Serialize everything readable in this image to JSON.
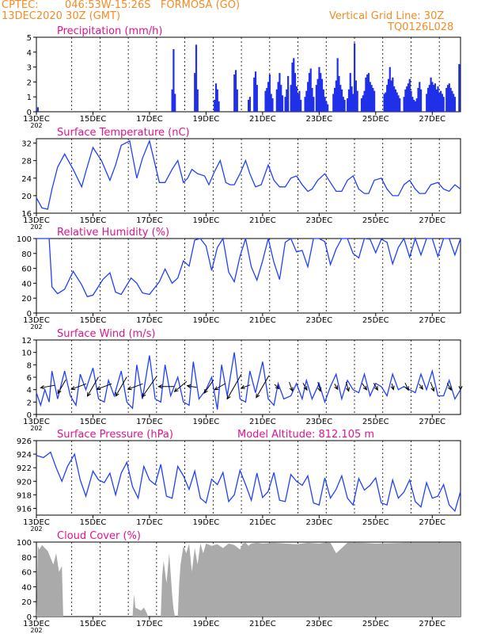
{
  "header": {
    "source": "CPTEC:",
    "location": "046:53W-15:26S   FORMOSA (GO)",
    "run": "13DEC2020 30Z (GMT)",
    "grid_note": "Vertical Grid Line: 30Z",
    "model": "TQ0126L028"
  },
  "altitude_label": "Model Altitude: 812.105 m",
  "colors": {
    "header": "#f28c28",
    "title": "#e0148c",
    "line": "#2040ff",
    "bar": "#2030e8",
    "cloud": "#aaaaaa",
    "arrow": "#000000"
  },
  "x_axis": {
    "tick_labels": [
      "13DEC",
      "15DEC",
      "17DEC",
      "19DEC",
      "21DEC",
      "23DEC",
      "25DEC",
      "27DEC"
    ],
    "year_fragment": "202",
    "range_days": [
      0,
      15
    ]
  },
  "chart_data": [
    {
      "type": "bar",
      "title": "Precipitation (mm/h)",
      "ylim": [
        0,
        5
      ],
      "yticks": [
        0,
        1,
        2,
        3,
        4,
        5
      ],
      "note": "x values in days after 13DEC 00Z",
      "x": [
        0.05,
        4.8,
        4.85,
        4.9,
        5.6,
        5.65,
        5.7,
        6.3,
        6.35,
        6.4,
        6.45,
        7.0,
        7.05,
        7.1,
        7.5,
        7.55,
        7.7,
        7.75,
        7.8,
        8.1,
        8.15,
        8.2,
        8.25,
        8.3,
        8.35,
        8.5,
        8.55,
        8.6,
        8.65,
        8.7,
        8.8,
        8.85,
        8.9,
        9.0,
        9.05,
        9.1,
        9.15,
        9.2,
        9.25,
        9.3,
        9.35,
        9.5,
        9.55,
        9.6,
        9.65,
        9.7,
        9.75,
        9.8,
        9.9,
        9.95,
        10.0,
        10.05,
        10.1,
        10.15,
        10.2,
        10.25,
        10.3,
        10.5,
        10.55,
        10.6,
        10.65,
        10.7,
        10.75,
        10.8,
        10.85,
        10.9,
        11.0,
        11.05,
        11.1,
        11.15,
        11.2,
        11.25,
        11.3,
        11.35,
        11.5,
        11.55,
        11.6,
        11.65,
        11.7,
        11.75,
        11.8,
        11.85,
        11.9,
        11.95,
        12.3,
        12.35,
        12.4,
        12.45,
        12.5,
        12.55,
        12.6,
        12.65,
        12.7,
        12.75,
        12.8,
        12.85,
        13.0,
        13.05,
        13.1,
        13.15,
        13.2,
        13.25,
        13.3,
        13.35,
        13.4,
        13.45,
        13.5,
        13.55,
        13.6,
        13.8,
        13.85,
        13.9,
        13.95,
        14.0,
        14.05,
        14.1,
        14.15,
        14.2,
        14.25,
        14.3,
        14.35,
        14.4,
        14.5,
        14.55,
        14.6,
        14.65,
        14.7,
        14.75,
        14.8,
        14.95
      ],
      "values": [
        0.3,
        1.5,
        4.2,
        1.2,
        2.6,
        4.5,
        1.5,
        0.8,
        1.9,
        1.5,
        0.7,
        2.5,
        2.8,
        1.5,
        0.8,
        1.0,
        2.3,
        2.7,
        1.8,
        1.4,
        1.6,
        2.0,
        2.5,
        1.2,
        0.9,
        1.5,
        2.0,
        2.6,
        1.8,
        1.1,
        1.0,
        1.5,
        2.4,
        1.8,
        3.3,
        3.6,
        2.6,
        1.7,
        1.2,
        1.4,
        0.8,
        1.0,
        1.4,
        2.0,
        2.6,
        2.9,
        1.6,
        1.0,
        1.8,
        2.2,
        3.0,
        2.6,
        2.2,
        1.5,
        1.0,
        0.7,
        0.5,
        1.2,
        1.6,
        2.1,
        3.6,
        2.4,
        1.8,
        1.5,
        1.0,
        0.8,
        0.9,
        1.5,
        2.6,
        1.7,
        1.2,
        4.6,
        2.1,
        1.4,
        0.9,
        1.1,
        1.4,
        2.3,
        2.5,
        2.6,
        2.0,
        1.8,
        1.6,
        1.4,
        1.2,
        1.3,
        1.8,
        2.2,
        3.0,
        2.1,
        2.3,
        1.7,
        1.5,
        1.3,
        1.1,
        0.9,
        1.0,
        1.5,
        1.7,
        1.9,
        2.2,
        1.4,
        1.0,
        0.8,
        0.7,
        0.9,
        1.6,
        2.0,
        1.5,
        1.2,
        1.6,
        1.8,
        2.3,
        2.0,
        1.8,
        1.9,
        1.5,
        1.7,
        1.3,
        1.4,
        1.2,
        1.0,
        1.6,
        1.8,
        1.9,
        1.6,
        1.4,
        1.2,
        1.0,
        3.2
      ]
    },
    {
      "type": "line",
      "title": "Surface Temperature (nC)",
      "ylim": [
        16,
        33
      ],
      "yticks": [
        16,
        20,
        24,
        28,
        32
      ],
      "x": [
        0,
        0.2,
        0.4,
        0.55,
        0.75,
        1.0,
        1.3,
        1.6,
        1.75,
        2.0,
        2.3,
        2.6,
        2.8,
        3.0,
        3.3,
        3.55,
        3.75,
        4.0,
        4.35,
        4.55,
        4.8,
        5.0,
        5.2,
        5.35,
        5.5,
        5.7,
        5.95,
        6.1,
        6.3,
        6.5,
        6.7,
        6.85,
        7.0,
        7.2,
        7.4,
        7.55,
        7.75,
        7.95,
        8.2,
        8.4,
        8.6,
        8.8,
        9.0,
        9.2,
        9.4,
        9.6,
        9.75,
        9.95,
        10.2,
        10.4,
        10.6,
        10.8,
        11.0,
        11.2,
        11.4,
        11.6,
        11.75,
        11.95,
        12.2,
        12.4,
        12.6,
        12.8,
        13.0,
        13.2,
        13.4,
        13.55,
        13.75,
        13.95,
        14.2,
        14.4,
        14.6,
        14.8,
        15.0
      ],
      "values": [
        19.5,
        17.2,
        16.9,
        21.5,
        26.5,
        29.5,
        26.0,
        22.0,
        25.5,
        31.0,
        28.0,
        23.5,
        27.0,
        31.5,
        32.5,
        24.0,
        28.5,
        32.5,
        23.0,
        23.0,
        26.0,
        28.0,
        23.0,
        24.0,
        26.0,
        25.0,
        24.5,
        22.5,
        25.5,
        28.0,
        23.0,
        22.5,
        22.5,
        25.0,
        28.0,
        25.0,
        22.0,
        22.5,
        27.0,
        23.5,
        22.0,
        22.0,
        24.0,
        24.5,
        22.5,
        21.0,
        21.5,
        23.5,
        25.0,
        23.0,
        21.0,
        21.0,
        23.5,
        24.5,
        21.5,
        20.5,
        20.5,
        23.5,
        24.0,
        21.5,
        20.0,
        20.0,
        22.5,
        23.5,
        21.5,
        20.5,
        20.5,
        22.5,
        23.0,
        21.5,
        21.0,
        22.5,
        21.5
      ]
    },
    {
      "type": "line",
      "title": "Relative Humidity (%)",
      "ylim": [
        0,
        100
      ],
      "yticks": [
        0,
        20,
        40,
        60,
        80,
        100
      ],
      "x": [
        0,
        0.25,
        0.45,
        0.55,
        0.75,
        1.0,
        1.3,
        1.6,
        1.8,
        2.0,
        2.35,
        2.6,
        2.8,
        3.0,
        3.35,
        3.55,
        3.75,
        4.0,
        4.35,
        4.55,
        4.8,
        5.0,
        5.2,
        5.4,
        5.6,
        5.8,
        6.0,
        6.2,
        6.4,
        6.6,
        6.8,
        7.0,
        7.2,
        7.4,
        7.6,
        7.8,
        8.0,
        8.2,
        8.4,
        8.6,
        8.8,
        9.0,
        9.2,
        9.4,
        9.6,
        9.8,
        10.0,
        10.2,
        10.4,
        10.6,
        10.8,
        11.0,
        11.2,
        11.4,
        11.6,
        11.8,
        12.0,
        12.2,
        12.4,
        12.6,
        12.8,
        13.0,
        13.2,
        13.4,
        13.6,
        13.8,
        14.0,
        14.2,
        14.4,
        14.6,
        14.8,
        15.0
      ],
      "values": [
        100,
        100,
        100,
        35,
        26,
        32,
        56,
        38,
        22,
        24,
        45,
        54,
        28,
        25,
        47,
        40,
        27,
        25,
        42,
        59,
        40,
        47,
        70,
        63,
        98,
        100,
        90,
        57,
        88,
        100,
        55,
        42,
        76,
        100,
        62,
        44,
        70,
        100,
        68,
        45,
        95,
        100,
        82,
        84,
        62,
        100,
        100,
        96,
        65,
        86,
        100,
        100,
        80,
        74,
        100,
        99,
        81,
        99,
        95,
        66,
        88,
        100,
        75,
        100,
        78,
        100,
        100,
        76,
        100,
        100,
        78,
        100
      ]
    },
    {
      "type": "line",
      "title": "Surface Wind (m/s)",
      "ylim": [
        0,
        12
      ],
      "yticks": [
        0,
        2,
        4,
        6,
        8,
        10,
        12
      ],
      "x": [
        0,
        0.15,
        0.3,
        0.45,
        0.55,
        0.75,
        1.0,
        1.2,
        1.4,
        1.55,
        1.75,
        2.0,
        2.2,
        2.4,
        2.55,
        2.75,
        3.0,
        3.2,
        3.4,
        3.55,
        3.75,
        4.0,
        4.2,
        4.4,
        4.55,
        4.75,
        5.0,
        5.2,
        5.4,
        5.55,
        5.75,
        6.0,
        6.2,
        6.4,
        6.55,
        6.75,
        7.0,
        7.2,
        7.4,
        7.55,
        7.75,
        8.0,
        8.2,
        8.4,
        8.55,
        8.75,
        9.0,
        9.2,
        9.4,
        9.55,
        9.75,
        10.0,
        10.2,
        10.4,
        10.6,
        10.8,
        11.0,
        11.2,
        11.4,
        11.6,
        11.8,
        12.0,
        12.2,
        12.4,
        12.6,
        12.8,
        13.0,
        13.2,
        13.4,
        13.6,
        13.8,
        14.0,
        14.2,
        14.4,
        14.6,
        14.8,
        15.0
      ],
      "values": [
        3.5,
        1.5,
        4.0,
        2.0,
        7.0,
        2.5,
        7.0,
        3.0,
        1.5,
        6.5,
        4.0,
        7.5,
        2.5,
        2.0,
        5.5,
        3.0,
        7.0,
        2.0,
        1.0,
        8.0,
        2.5,
        9.5,
        2.5,
        2.0,
        8.0,
        3.0,
        6.0,
        2.0,
        1.5,
        8.5,
        2.5,
        4.0,
        6.0,
        0.8,
        8.0,
        3.0,
        10.0,
        2.5,
        2.0,
        7.0,
        3.5,
        8.5,
        2.5,
        1.5,
        5.0,
        2.5,
        3.0,
        5.0,
        2.5,
        5.5,
        2.5,
        5.0,
        2.0,
        4.5,
        6.5,
        2.5,
        5.5,
        4.0,
        3.5,
        6.5,
        3.0,
        5.0,
        4.5,
        3.0,
        6.5,
        4.0,
        4.5,
        4.0,
        3.5,
        6.5,
        4.0,
        7.0,
        3.0,
        3.0,
        5.5,
        2.5,
        4.0
      ]
    },
    {
      "type": "line",
      "title": "Surface Pressure (hPa)",
      "ylim": [
        915,
        926
      ],
      "yticks": [
        916,
        918,
        920,
        922,
        924,
        926
      ],
      "x": [
        0,
        0.25,
        0.5,
        0.7,
        0.9,
        1.1,
        1.35,
        1.55,
        1.75,
        2.0,
        2.2,
        2.4,
        2.6,
        2.8,
        3.0,
        3.2,
        3.4,
        3.6,
        3.8,
        4.0,
        4.2,
        4.4,
        4.6,
        4.8,
        5.0,
        5.2,
        5.4,
        5.6,
        5.8,
        6.0,
        6.2,
        6.4,
        6.6,
        6.8,
        7.0,
        7.2,
        7.4,
        7.6,
        7.8,
        8.0,
        8.2,
        8.4,
        8.6,
        8.8,
        9.0,
        9.2,
        9.4,
        9.6,
        9.8,
        10.0,
        10.2,
        10.4,
        10.6,
        10.8,
        11.0,
        11.2,
        11.4,
        11.6,
        11.8,
        12.0,
        12.2,
        12.4,
        12.6,
        12.8,
        13.0,
        13.2,
        13.4,
        13.6,
        13.8,
        14.0,
        14.2,
        14.4,
        14.6,
        14.8,
        15.0
      ],
      "values": [
        923.8,
        923.5,
        924.3,
        922.0,
        920.0,
        922.2,
        924.0,
        920.2,
        917.8,
        921.5,
        920.2,
        919.8,
        921.2,
        918.0,
        921.2,
        922.8,
        919.2,
        917.5,
        922.2,
        920.2,
        919.5,
        922.5,
        917.8,
        917.5,
        922.2,
        920.8,
        918.8,
        921.5,
        917.5,
        916.8,
        920.3,
        919.5,
        921.3,
        917.0,
        918.0,
        921.6,
        919.5,
        917.2,
        921.2,
        917.6,
        918.5,
        921.3,
        917.2,
        917.0,
        921.0,
        920.0,
        919.4,
        920.8,
        916.8,
        916.5,
        920.5,
        917.5,
        918.8,
        920.8,
        917.5,
        916.5,
        920.4,
        918.7,
        919.4,
        920.5,
        916.8,
        916.5,
        920.2,
        917.5,
        918.4,
        920.2,
        917.0,
        916.2,
        919.8,
        917.5,
        917.8,
        919.5,
        916.5,
        915.6,
        918.5
      ]
    },
    {
      "type": "area",
      "title": "Cloud Cover (%)",
      "ylim": [
        0,
        100
      ],
      "yticks": [
        0,
        20,
        40,
        60,
        80,
        100
      ],
      "x": [
        0,
        0.05,
        0.1,
        0.2,
        0.4,
        0.6,
        0.7,
        0.8,
        0.9,
        0.95,
        1.0,
        3.4,
        3.45,
        3.5,
        3.7,
        3.8,
        3.9,
        3.95,
        4.0,
        4.4,
        4.45,
        4.5,
        4.6,
        4.7,
        4.8,
        4.85,
        4.9,
        5.0,
        5.05,
        5.1,
        5.2,
        5.3,
        5.4,
        5.5,
        5.6,
        5.7,
        5.8,
        5.9,
        6.0,
        6.2,
        6.4,
        6.6,
        6.8,
        7.0,
        7.2,
        7.3,
        7.4,
        7.5,
        7.6,
        7.8,
        8.0,
        8.4,
        8.8,
        9.2,
        9.6,
        10.0,
        10.2,
        10.4,
        10.6,
        11.0,
        11.5,
        12.0,
        13.0,
        14.0,
        15.0
      ],
      "values": [
        0,
        95,
        90,
        96,
        88,
        70,
        85,
        60,
        68,
        0,
        0,
        0,
        30,
        12,
        8,
        12,
        5,
        0,
        0,
        0,
        55,
        75,
        45,
        85,
        30,
        10,
        0,
        0,
        45,
        70,
        95,
        85,
        98,
        60,
        92,
        70,
        98,
        85,
        98,
        95,
        97,
        92,
        98,
        96,
        90,
        98,
        99,
        95,
        98,
        99,
        98,
        99,
        98,
        97,
        99,
        98,
        99,
        99,
        85,
        99,
        99,
        98,
        99,
        99,
        99
      ],
      "note": "values 0 = clear; fill drawn down to 0"
    }
  ],
  "wind_vectors": {
    "note": "arrows show wind direction (toward), x in days, speed and direction in degrees (0 = north, clockwise)",
    "items": [
      {
        "x": 0.4,
        "dir": 260,
        "spd": 4.5
      },
      {
        "x": 0.9,
        "dir": 210,
        "spd": 5
      },
      {
        "x": 1.5,
        "dir": 250,
        "spd": 5
      },
      {
        "x": 2.0,
        "dir": 210,
        "spd": 7
      },
      {
        "x": 2.4,
        "dir": 250,
        "spd": 5
      },
      {
        "x": 3.0,
        "dir": 210,
        "spd": 7
      },
      {
        "x": 3.5,
        "dir": 250,
        "spd": 5
      },
      {
        "x": 4.0,
        "dir": 215,
        "spd": 8
      },
      {
        "x": 4.6,
        "dir": 270,
        "spd": 5
      },
      {
        "x": 5.1,
        "dir": 230,
        "spd": 5
      },
      {
        "x": 5.5,
        "dir": 280,
        "spd": 3
      },
      {
        "x": 6.1,
        "dir": 215,
        "spd": 5
      },
      {
        "x": 6.5,
        "dir": 240,
        "spd": 4
      },
      {
        "x": 7.0,
        "dir": 210,
        "spd": 9
      },
      {
        "x": 7.4,
        "dir": 250,
        "spd": 3
      },
      {
        "x": 8.0,
        "dir": 210,
        "spd": 8
      },
      {
        "x": 8.5,
        "dir": 135,
        "spd": 2
      },
      {
        "x": 9.0,
        "dir": 160,
        "spd": 3
      },
      {
        "x": 9.5,
        "dir": 150,
        "spd": 2.5
      },
      {
        "x": 10.0,
        "dir": 165,
        "spd": 3
      },
      {
        "x": 10.6,
        "dir": 150,
        "spd": 2
      },
      {
        "x": 11.0,
        "dir": 165,
        "spd": 3
      },
      {
        "x": 11.6,
        "dir": 145,
        "spd": 2.5
      },
      {
        "x": 12.0,
        "dir": 150,
        "spd": 2.5
      },
      {
        "x": 12.6,
        "dir": 165,
        "spd": 2
      },
      {
        "x": 13.1,
        "dir": 155,
        "spd": 2.5
      },
      {
        "x": 13.6,
        "dir": 145,
        "spd": 2
      },
      {
        "x": 14.0,
        "dir": 160,
        "spd": 3
      },
      {
        "x": 14.6,
        "dir": 150,
        "spd": 2.5
      },
      {
        "x": 15.0,
        "dir": 180,
        "spd": 2
      }
    ]
  }
}
